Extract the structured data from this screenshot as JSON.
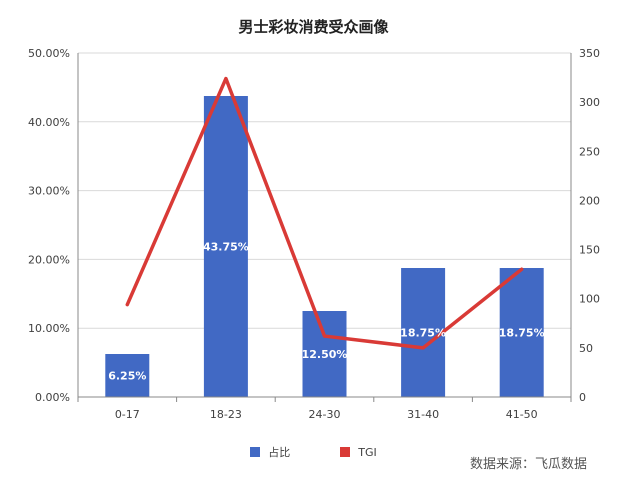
{
  "colors": {
    "bar": "#4169c4",
    "line": "#d93a36",
    "grid": "#d9d9d9",
    "axis": "#888888"
  },
  "source": "数据来源：飞瓜数据",
  "chart_data": {
    "type": "bar",
    "title": "男士彩妆消费受众画像",
    "categories": [
      "0-17",
      "18-23",
      "24-30",
      "31-40",
      "41-50"
    ],
    "series": [
      {
        "name": "占比",
        "type": "bar",
        "axis": "left",
        "values": [
          6.25,
          43.75,
          12.5,
          18.75,
          18.75
        ],
        "labels": [
          "6.25%",
          "43.75%",
          "12.50%",
          "18.75%",
          "18.75%"
        ]
      },
      {
        "name": "TGI",
        "type": "line",
        "axis": "right",
        "values": [
          94,
          324,
          62,
          50,
          130
        ]
      }
    ],
    "y_left": {
      "lim": [
        0,
        50
      ],
      "ticks": [
        "0.00%",
        "10.00%",
        "20.00%",
        "30.00%",
        "40.00%",
        "50.00%"
      ]
    },
    "y_right": {
      "lim": [
        0,
        350
      ],
      "ticks": [
        "0",
        "50",
        "100",
        "150",
        "200",
        "250",
        "300",
        "350"
      ]
    },
    "grid": true,
    "legend": "bottom"
  }
}
